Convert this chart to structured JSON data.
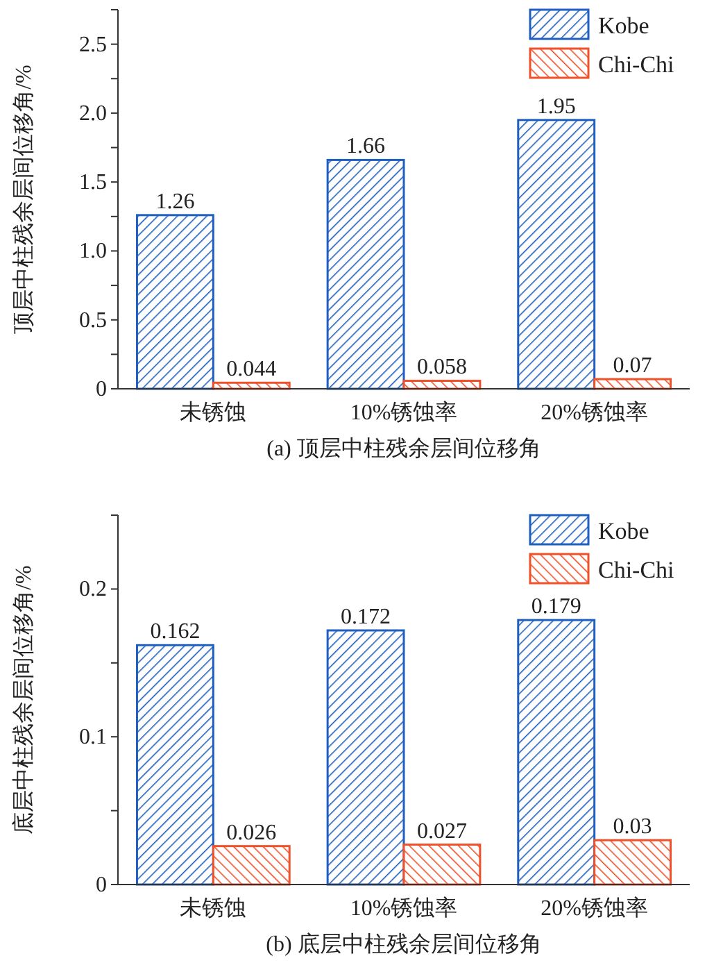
{
  "chart_data": [
    {
      "type": "bar",
      "title": "(a) 顶层中柱残余层间位移角",
      "ylabel": "顶层中柱残余层间位移角/%",
      "categories": [
        "未锈蚀",
        "10%锈蚀率",
        "20%锈蚀率"
      ],
      "series": [
        {
          "name": "Kobe",
          "color": "#1f5fbf",
          "values": [
            1.26,
            1.66,
            1.95
          ]
        },
        {
          "name": "Chi-Chi",
          "color": "#f0502a",
          "values": [
            0.044,
            0.058,
            0.07
          ]
        }
      ],
      "ylim": [
        0,
        2.75
      ],
      "yticks": [
        0,
        {
          "value": 0.25,
          "label": null
        },
        0.5,
        {
          "value": 0.75,
          "label": null
        },
        {
          "value": 1,
          "label": "1.0"
        },
        {
          "value": 1.25,
          "label": null
        },
        1.5,
        {
          "value": 1.75,
          "label": null
        },
        {
          "value": 2,
          "label": "2.0"
        },
        {
          "value": 2.25,
          "label": null
        },
        2.5,
        {
          "value": 2.75,
          "label": null
        }
      ],
      "data_labels": true,
      "legend": "top right",
      "grid": false
    },
    {
      "type": "bar",
      "title": "(b) 底层中柱残余层间位移角",
      "ylabel": "底层中柱残余层间位移角/%",
      "categories": [
        "未锈蚀",
        "10%锈蚀率",
        "20%锈蚀率"
      ],
      "series": [
        {
          "name": "Kobe",
          "color": "#1f5fbf",
          "values": [
            0.162,
            0.172,
            0.179
          ]
        },
        {
          "name": "Chi-Chi",
          "color": "#f0502a",
          "values": [
            0.026,
            0.027,
            0.03
          ]
        }
      ],
      "ylim": [
        0,
        0.25
      ],
      "yticks": [
        0,
        {
          "value": 0.05,
          "label": null
        },
        0.1,
        {
          "value": 0.15,
          "label": null
        },
        0.2,
        {
          "value": 0.25,
          "label": null
        }
      ],
      "data_labels": true,
      "legend": "top right",
      "grid": false
    }
  ]
}
